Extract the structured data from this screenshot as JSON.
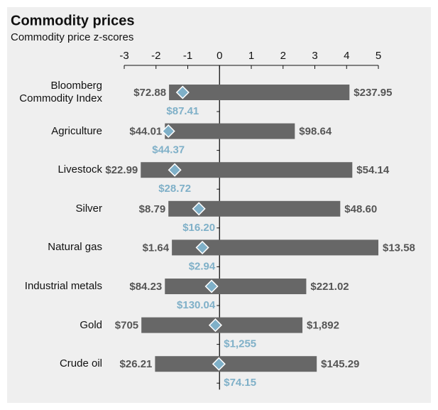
{
  "chart_data": {
    "type": "range",
    "title": "Commodity prices",
    "subtitle": "Commodity price z-scores",
    "categories": [
      "Bloomberg Commodity Index",
      "Agriculture",
      "Livestock",
      "Silver",
      "Natural gas",
      "Industrial metals",
      "Gold",
      "Crude oil"
    ],
    "low": [
      -1.59,
      -1.72,
      -2.48,
      -1.61,
      -1.5,
      -1.72,
      -2.46,
      -2.03
    ],
    "high": [
      4.09,
      2.37,
      4.18,
      3.8,
      5.0,
      2.73,
      2.61,
      3.06
    ],
    "current": [
      -1.16,
      -1.61,
      -1.41,
      -0.65,
      -0.54,
      -0.25,
      -0.13,
      -0.02
    ],
    "low_labels": [
      "$72.88",
      "$44.01",
      "$22.99",
      "$8.79",
      "$1.64",
      "$84.23",
      "$705",
      "$26.21"
    ],
    "high_labels": [
      "$237.95",
      "$98.64",
      "$54.14",
      "$48.60",
      "$13.58",
      "$221.02",
      "$1,892",
      "$145.29"
    ],
    "current_labels": [
      "$87.41",
      "$44.37",
      "$28.72",
      "$16.20",
      "$2.94",
      "$130.04",
      "$1,255",
      "$74.15"
    ],
    "xlim": [
      -3,
      5
    ],
    "xticks": [
      -3,
      -2,
      -1,
      0,
      1,
      2,
      3,
      4,
      5
    ],
    "bar_color": "#676767",
    "marker_color": "#7fb0c8"
  }
}
